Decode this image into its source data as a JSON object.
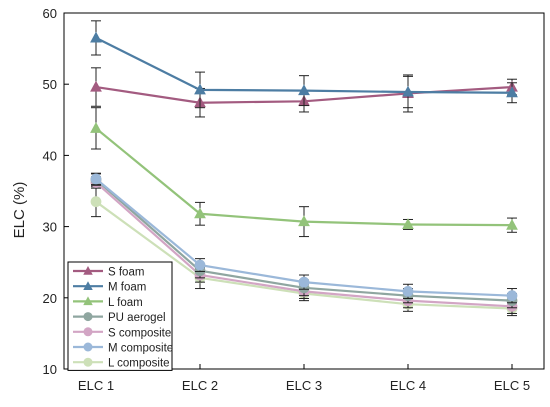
{
  "chart_data": {
    "type": "line",
    "title": "",
    "xlabel": "",
    "ylabel": "ELC (%)",
    "categories": [
      "ELC 1",
      "ELC 2",
      "ELC 3",
      "ELC 4",
      "ELC 5"
    ],
    "ylim": [
      10,
      60
    ],
    "yticks": [
      10,
      20,
      30,
      40,
      50,
      60
    ],
    "grid": false,
    "legend_position": "bottom-left",
    "series": [
      {
        "name": "S foam",
        "color": "#a35b80",
        "marker": "triangle",
        "values": [
          49.6,
          47.4,
          47.6,
          48.7,
          49.6
        ],
        "errors": [
          2.7,
          2.0,
          1.5,
          2.6,
          1.1
        ]
      },
      {
        "name": "M foam",
        "color": "#4d7da3",
        "marker": "triangle",
        "values": [
          56.5,
          49.2,
          49.1,
          48.9,
          48.8
        ],
        "errors": [
          2.4,
          2.5,
          2.1,
          2.2,
          1.4
        ]
      },
      {
        "name": "L foam",
        "color": "#93c37a",
        "marker": "triangle",
        "values": [
          43.8,
          31.8,
          30.7,
          30.3,
          30.2
        ],
        "errors": [
          2.9,
          1.6,
          2.1,
          0.7,
          1.0
        ]
      },
      {
        "name": "PU aerogel",
        "color": "#8fa6a0",
        "marker": "circle",
        "values": [
          36.6,
          23.8,
          21.4,
          20.3,
          19.6
        ],
        "errors": [
          0.8,
          1.0,
          1.1,
          1.0,
          1.0
        ]
      },
      {
        "name": "S composite",
        "color": "#d2a5c4",
        "marker": "circle",
        "values": [
          36.2,
          23.2,
          20.9,
          19.6,
          18.8
        ],
        "errors": [
          0.8,
          1.0,
          1.0,
          1.0,
          1.0
        ]
      },
      {
        "name": "M composite",
        "color": "#9bb8d9",
        "marker": "circle",
        "values": [
          36.7,
          24.6,
          22.2,
          20.9,
          20.3
        ],
        "errors": [
          0.8,
          0.9,
          1.0,
          1.0,
          1.0
        ]
      },
      {
        "name": "L composite",
        "color": "#cde0b8",
        "marker": "circle",
        "values": [
          33.5,
          22.8,
          20.6,
          19.1,
          18.5
        ],
        "errors": [
          2.1,
          1.5,
          1.0,
          1.0,
          1.0
        ]
      }
    ]
  }
}
